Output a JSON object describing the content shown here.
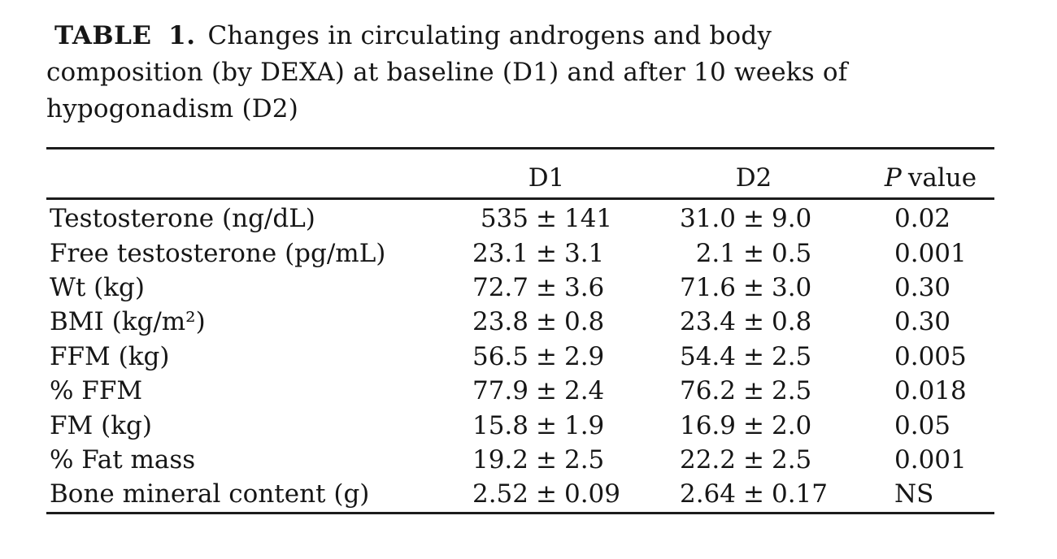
{
  "caption": {
    "label": "TABLE 1.",
    "line1": "Changes in circulating androgens and body",
    "line2": "composition (by DEXA) at baseline (D1) and after 10 weeks of",
    "line3": "hypogonadism (D2)"
  },
  "table": {
    "pm": "±",
    "headers": {
      "d1": "D1",
      "d2": "D2",
      "p_italic": "P",
      "p_rest": "value"
    },
    "rows": [
      {
        "label": "Testosterone (ng/dL)",
        "d1m": "535",
        "d1s": "141",
        "d2m": "31.0",
        "d2s": "9.0",
        "p": "0.02"
      },
      {
        "label": "Free testosterone (pg/mL)",
        "d1m": "23.1",
        "d1s": "3.1",
        "d2m": "2.1",
        "d2s": "0.5",
        "p": "0.001"
      },
      {
        "label": "Wt (kg)",
        "d1m": "72.7",
        "d1s": "3.6",
        "d2m": "71.6",
        "d2s": "3.0",
        "p": "0.30"
      },
      {
        "label": "BMI (kg/m²)",
        "d1m": "23.8",
        "d1s": "0.8",
        "d2m": "23.4",
        "d2s": "0.8",
        "p": "0.30"
      },
      {
        "label": "FFM (kg)",
        "d1m": "56.5",
        "d1s": "2.9",
        "d2m": "54.4",
        "d2s": "2.5",
        "p": "0.005"
      },
      {
        "label": "% FFM",
        "d1m": "77.9",
        "d1s": "2.4",
        "d2m": "76.2",
        "d2s": "2.5",
        "p": "0.018"
      },
      {
        "label": "FM (kg)",
        "d1m": "15.8",
        "d1s": "1.9",
        "d2m": "16.9",
        "d2s": "2.0",
        "p": "0.05"
      },
      {
        "label": "% Fat mass",
        "d1m": "19.2",
        "d1s": "2.5",
        "d2m": "22.2",
        "d2s": "2.5",
        "p": "0.001"
      },
      {
        "label": "Bone mineral content (g)",
        "d1m": "2.52",
        "d1s": "0.09",
        "d2m": "2.64",
        "d2s": "0.17",
        "p": "NS"
      }
    ],
    "text_color": "#161616",
    "rule_color": "#1c1c1c",
    "background": "#ffffff"
  }
}
